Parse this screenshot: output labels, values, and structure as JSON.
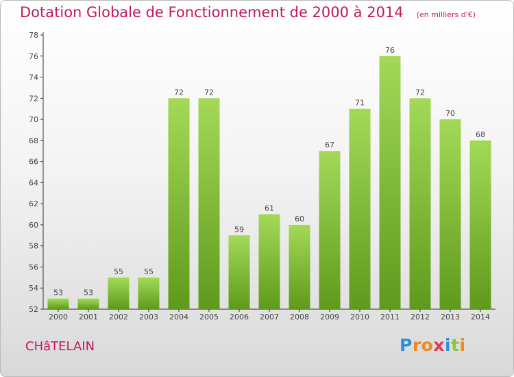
{
  "chart_data": {
    "type": "bar",
    "title": "Dotation Globale de Fonctionnement de 2000 à 2014",
    "unit": "(en milliers d'€)",
    "categories": [
      "2000",
      "2001",
      "2002",
      "2003",
      "2004",
      "2005",
      "2006",
      "2007",
      "2008",
      "2009",
      "2010",
      "2011",
      "2012",
      "2013",
      "2014"
    ],
    "values": [
      53,
      53,
      55,
      55,
      72,
      72,
      59,
      61,
      60,
      67,
      71,
      76,
      72,
      70,
      68
    ],
    "ylim": [
      52,
      78
    ],
    "yticks": [
      52,
      54,
      56,
      58,
      60,
      62,
      64,
      66,
      68,
      70,
      72,
      74,
      76,
      78
    ],
    "grid": false,
    "legend": "none",
    "bar_color": "#7cb82f",
    "bar_color_light": "#9ed44f"
  },
  "commune": "CHâTELAIN",
  "logo": {
    "letters": [
      "P",
      "r",
      "o",
      "x",
      "i",
      "t",
      "i"
    ],
    "colors": [
      "#2f8fd6",
      "#f08a1c",
      "#f08a1c",
      "#e23b4a",
      "#2f8fd6",
      "#8cc63f",
      "#f08a1c"
    ]
  },
  "colors": {
    "title": "#c0185f",
    "axis": "#333333"
  }
}
